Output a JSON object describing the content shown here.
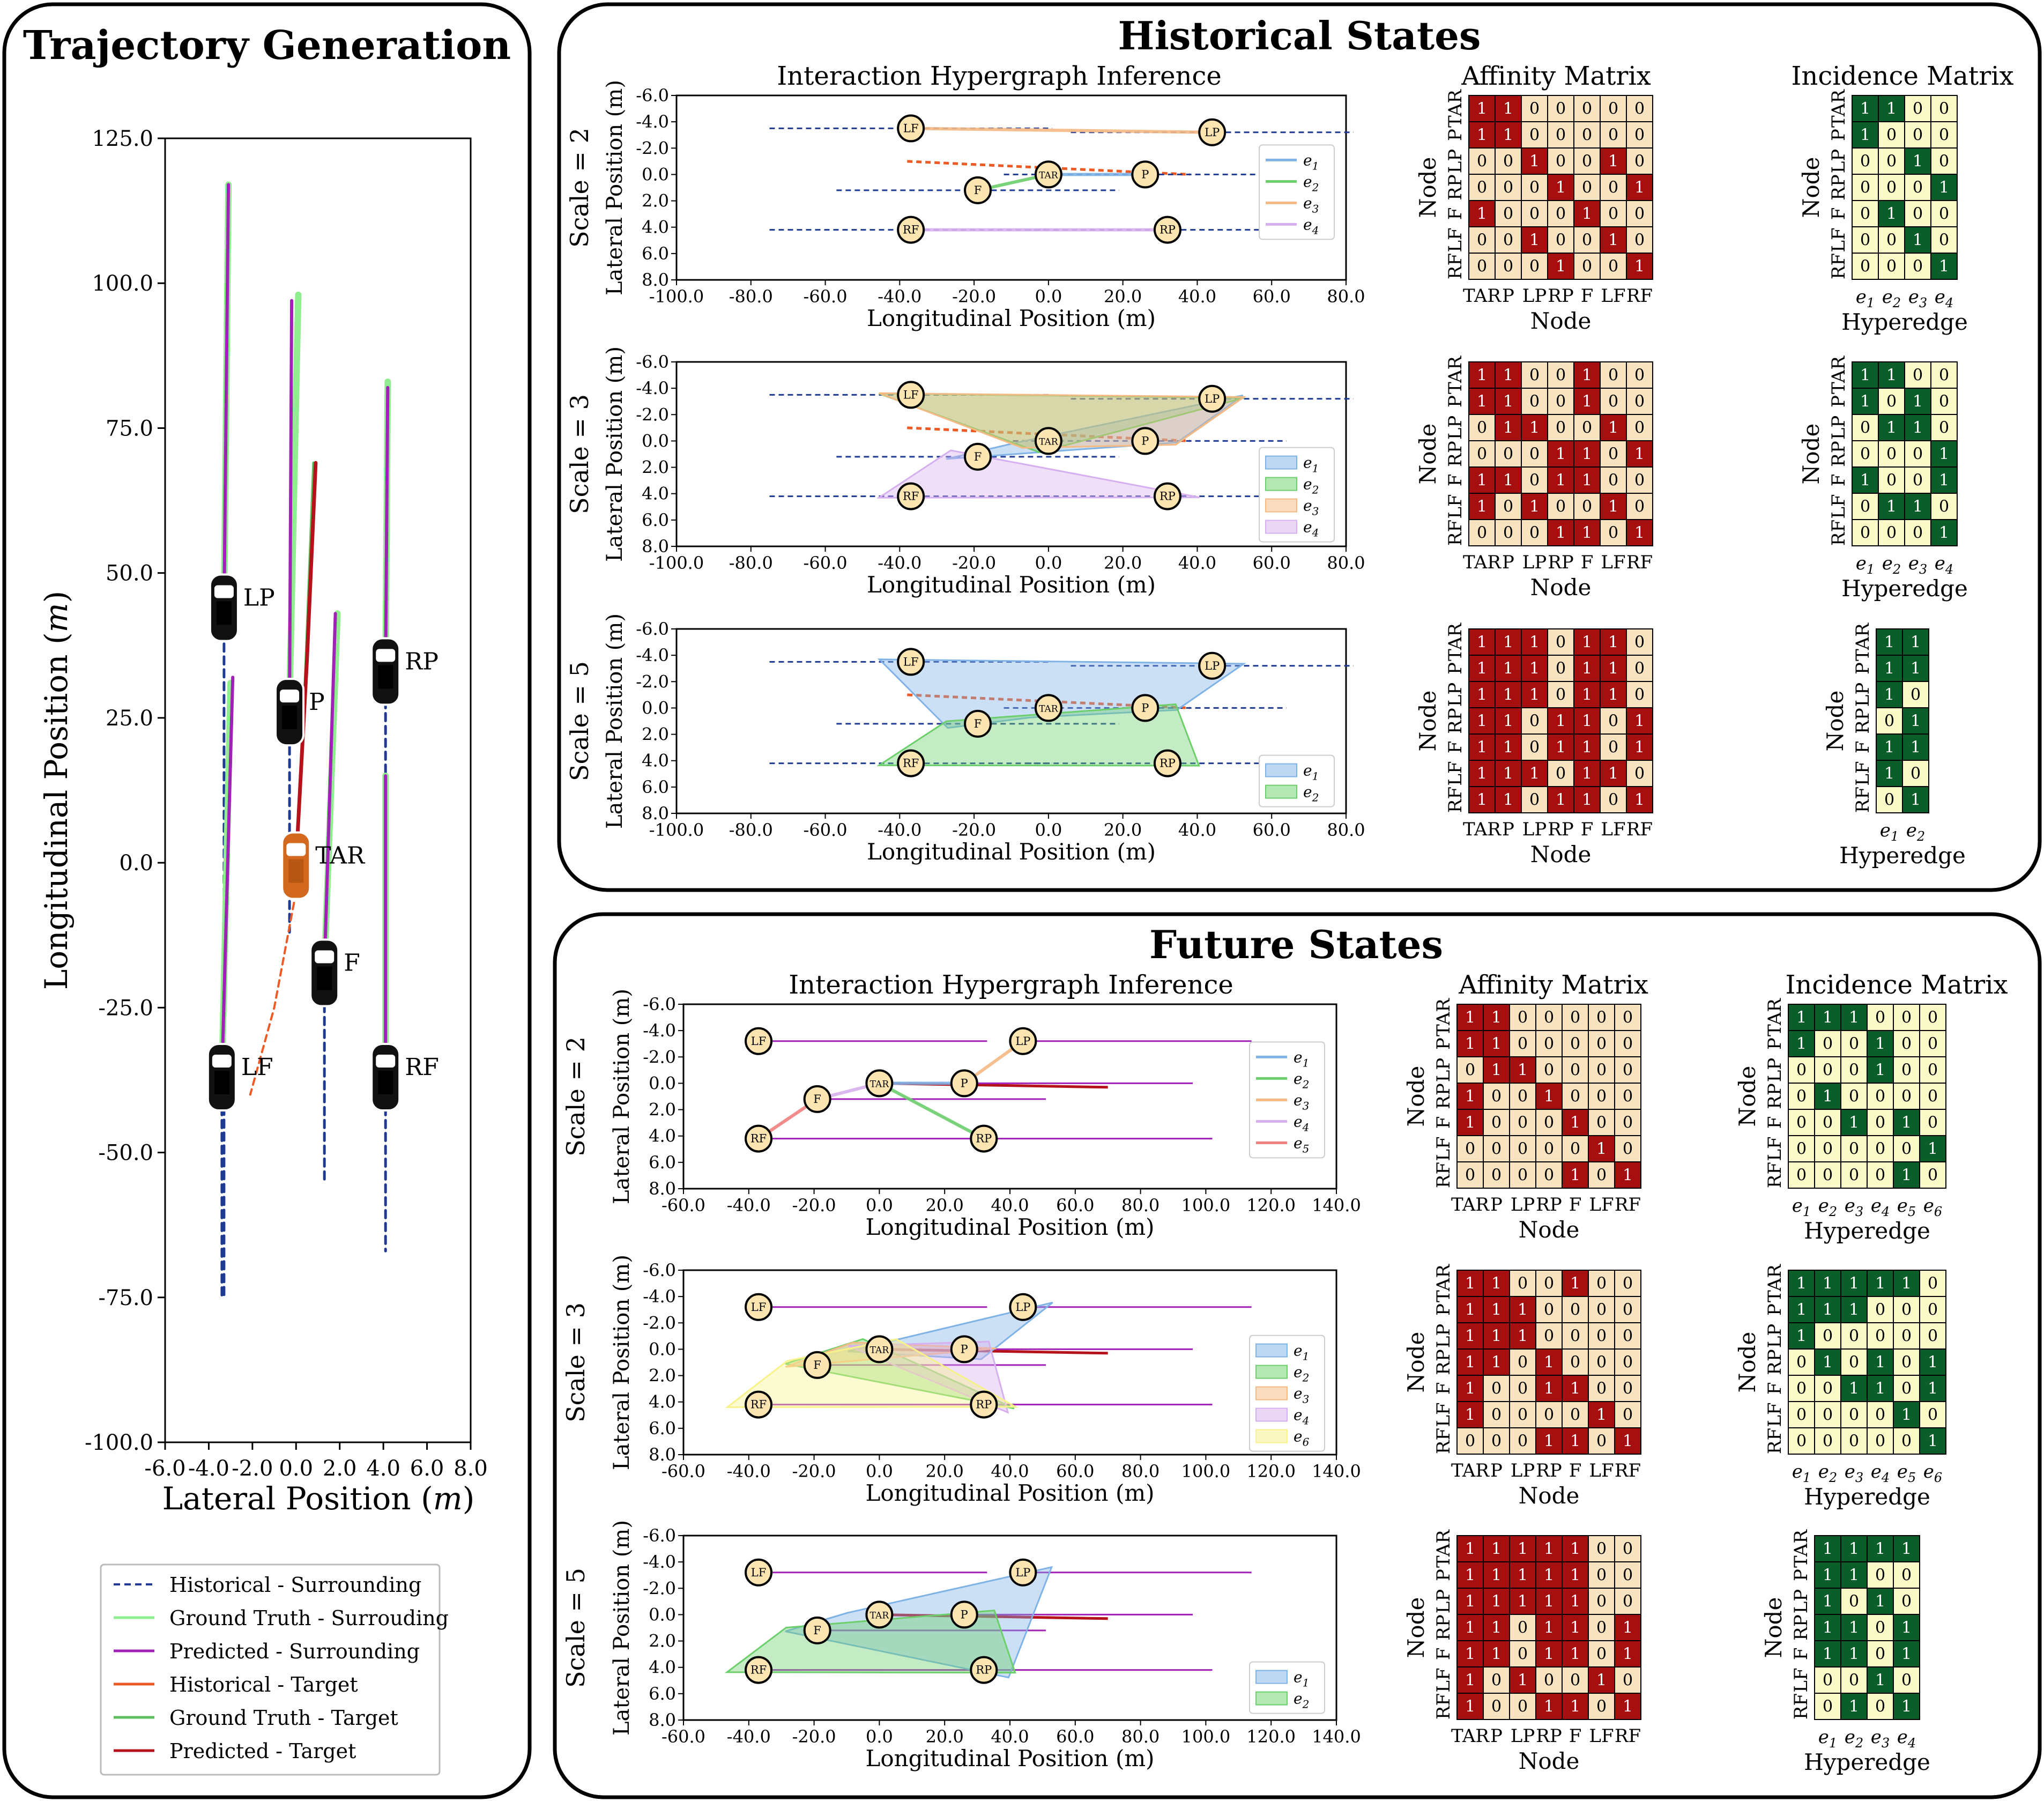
{
  "colors": {
    "hist_surr": "#1f3a93",
    "gt_surr": "#90ee90",
    "pred_surr": "#a020b8",
    "hist_tgt": "#ee5a24",
    "gt_tgt": "#5cbf5c",
    "pred_tgt": "#b5121b",
    "aff_one": "#a50f0f",
    "aff_zero": "#f7e3c0",
    "inc_one": "#0b5e2a",
    "inc_zero": "#fafac8",
    "node_fill": "#fce5b0",
    "e1": "#7fb2e5",
    "e2": "#6ccf6c",
    "e3": "#f5b984",
    "e4": "#d6b0ee",
    "e5": "#f08080",
    "e6": "#f7f28a"
  },
  "left": {
    "title": "Trajectory Generation",
    "xlabel": "Lateral Position",
    "ylabel": "Longitudinal Position",
    "unit": "m",
    "x_ticks": [
      "-6.0",
      "-4.0",
      "-2.0",
      "0.0",
      "2.0",
      "4.0",
      "6.0",
      "8.0"
    ],
    "y_ticks": [
      "125.0",
      "100.0",
      "75.0",
      "50.0",
      "25.0",
      "0.0",
      "-25.0",
      "-50.0",
      "-75.0",
      "-100.0"
    ],
    "legend": [
      "Historical - Surrounding",
      "Ground Truth - Surrouding",
      "Predicted - Surrounding",
      "Historical - Target",
      "Ground Truth - Target",
      "Predicted - Target"
    ],
    "vehicles": [
      "LP",
      "P",
      "RP",
      "TAR",
      "F",
      "LF",
      "RF"
    ]
  },
  "chart_data": {
    "type": "line",
    "title": "Trajectory Generation",
    "xlabel": "Lateral Position (m)",
    "ylabel": "Longitudinal Position (m)",
    "xlim": [
      -6,
      8
    ],
    "ylim": [
      -100,
      125
    ],
    "vehicles": [
      {
        "name": "LP",
        "x": -3.3,
        "y": 44
      },
      {
        "name": "P",
        "x": -0.3,
        "y": 26
      },
      {
        "name": "RP",
        "x": 4.1,
        "y": 33
      },
      {
        "name": "TAR",
        "x": 0.0,
        "y": -0.5
      },
      {
        "name": "F",
        "x": 1.3,
        "y": -19
      },
      {
        "name": "LF",
        "x": -3.4,
        "y": -37
      },
      {
        "name": "RF",
        "x": 4.1,
        "y": -37
      }
    ],
    "series": [
      {
        "name": "Historical - Surrounding",
        "lines": [
          [
            [
              -3.3,
              40
            ],
            [
              -3.3,
              -75
            ]
          ],
          [
            [
              -0.3,
              20
            ],
            [
              -0.3,
              -12
            ]
          ],
          [
            [
              4.1,
              28
            ],
            [
              4.1,
              -9
            ]
          ],
          [
            [
              1.3,
              -20
            ],
            [
              1.3,
              -55
            ]
          ],
          [
            [
              -3.4,
              -40
            ],
            [
              -3.4,
              -75
            ]
          ],
          [
            [
              4.1,
              -40
            ],
            [
              4.1,
              -67
            ]
          ]
        ]
      },
      {
        "name": "Ground Truth - Surrouding",
        "lines": [
          [
            [
              -3.3,
              44
            ],
            [
              -3.1,
              117
            ]
          ],
          [
            [
              -0.3,
              28
            ],
            [
              0.1,
              98
            ]
          ],
          [
            [
              4.1,
              33
            ],
            [
              4.2,
              83
            ]
          ],
          [
            [
              1.3,
              -18
            ],
            [
              1.9,
              43
            ]
          ],
          [
            [
              -3.4,
              -37
            ],
            [
              -3.0,
              31
            ]
          ],
          [
            [
              4.1,
              -37
            ],
            [
              4.1,
              15
            ]
          ]
        ]
      },
      {
        "name": "Predicted - Surrounding",
        "lines": [
          [
            [
              -3.3,
              44
            ],
            [
              -3.1,
              117
            ]
          ],
          [
            [
              -0.3,
              28
            ],
            [
              -0.2,
              97
            ]
          ],
          [
            [
              4.1,
              33
            ],
            [
              4.2,
              82
            ]
          ],
          [
            [
              1.3,
              -18
            ],
            [
              1.8,
              43
            ]
          ],
          [
            [
              -3.4,
              -37
            ],
            [
              -2.9,
              32
            ]
          ],
          [
            [
              4.1,
              -37
            ],
            [
              4.1,
              15
            ]
          ]
        ]
      },
      {
        "name": "Historical - Target",
        "lines": [
          [
            [
              0.0,
              -5
            ],
            [
              -1.0,
              -25
            ],
            [
              -2.1,
              -40
            ]
          ]
        ]
      },
      {
        "name": "Ground Truth - Target",
        "lines": [
          [
            [
              0.0,
              0
            ],
            [
              0.4,
              30
            ],
            [
              0.8,
              69
            ]
          ]
        ]
      },
      {
        "name": "Predicted - Target",
        "lines": [
          [
            [
              0.0,
              0
            ],
            [
              0.5,
              35
            ],
            [
              0.9,
              69
            ]
          ]
        ]
      }
    ],
    "hypergraphs": {
      "historical": {
        "xlim": [
          -100,
          80
        ],
        "ylim": [
          -6,
          8
        ],
        "nodes": [
          {
            "n": "LF",
            "x": -37,
            "y": -3.5
          },
          {
            "n": "LP",
            "x": 44,
            "y": -3.2
          },
          {
            "n": "TAR",
            "x": 0,
            "y": 0
          },
          {
            "n": "P",
            "x": 26,
            "y": 0
          },
          {
            "n": "F",
            "x": -19,
            "y": 1.2
          },
          {
            "n": "RF",
            "x": -37,
            "y": 4.2
          },
          {
            "n": "RP",
            "x": 32,
            "y": 4.2
          }
        ],
        "scale2_edges": [
          "e1",
          "e2",
          "e3",
          "e4"
        ],
        "scale3_edges": [
          "e1",
          "e2",
          "e3",
          "e4"
        ],
        "scale5_edges": [
          "e1",
          "e2"
        ]
      },
      "future": {
        "xlim": [
          -60,
          140
        ],
        "ylim": [
          -6,
          8
        ],
        "nodes": [
          {
            "n": "LF",
            "x": -37,
            "y": -3.2
          },
          {
            "n": "LP",
            "x": 44,
            "y": -3.2
          },
          {
            "n": "TAR",
            "x": 0,
            "y": 0
          },
          {
            "n": "P",
            "x": 26,
            "y": 0
          },
          {
            "n": "F",
            "x": -19,
            "y": 1.2
          },
          {
            "n": "RF",
            "x": -37,
            "y": 4.2
          },
          {
            "n": "RP",
            "x": 32,
            "y": 4.2
          }
        ],
        "scale2_edges": [
          "e1",
          "e2",
          "e3",
          "e4",
          "e5"
        ],
        "scale3_edges": [
          "e1",
          "e2",
          "e3",
          "e4",
          "e6"
        ],
        "scale5_edges": [
          "e1",
          "e2"
        ]
      }
    }
  },
  "hist": {
    "title": "Historical States",
    "col1": "Interaction Hypergraph Inference",
    "col2": "Affinity Matrix",
    "col3": "Incidence Matrix",
    "xlabel": "Longitudinal Position",
    "ylabel": "Lateral Position",
    "x_ticks": [
      "-100.0",
      "-80.0",
      "-60.0",
      "-40.0",
      "-20.0",
      "0.0",
      "20.0",
      "40.0",
      "60.0",
      "80.0"
    ],
    "y_ticks": [
      "-6.0",
      "-4.0",
      "-2.0",
      "0.0",
      "2.0",
      "4.0",
      "6.0",
      "8.0"
    ],
    "scales": [
      "Scale = 2",
      "Scale = 3",
      "Scale = 5"
    ],
    "node_axis": "Node",
    "hyper_axis": "Hyperedge",
    "node_labels": [
      "TAR",
      "P",
      "LP",
      "RP",
      "F",
      "LF",
      "RF"
    ],
    "aff": [
      [
        [
          1,
          1,
          0,
          0,
          0,
          0,
          0
        ],
        [
          1,
          1,
          0,
          0,
          0,
          0,
          0
        ],
        [
          0,
          0,
          1,
          0,
          0,
          1,
          0
        ],
        [
          0,
          0,
          0,
          1,
          0,
          0,
          1
        ],
        [
          1,
          0,
          0,
          0,
          1,
          0,
          0
        ],
        [
          0,
          0,
          1,
          0,
          0,
          1,
          0
        ],
        [
          0,
          0,
          0,
          1,
          0,
          0,
          1
        ]
      ],
      [
        [
          1,
          1,
          0,
          0,
          1,
          0,
          0
        ],
        [
          1,
          1,
          0,
          0,
          1,
          0,
          0
        ],
        [
          0,
          1,
          1,
          0,
          0,
          1,
          0
        ],
        [
          0,
          0,
          0,
          1,
          1,
          0,
          1
        ],
        [
          1,
          1,
          0,
          1,
          1,
          0,
          0
        ],
        [
          1,
          0,
          1,
          0,
          0,
          1,
          0
        ],
        [
          0,
          0,
          0,
          1,
          1,
          0,
          1
        ]
      ],
      [
        [
          1,
          1,
          1,
          0,
          1,
          1,
          0
        ],
        [
          1,
          1,
          1,
          0,
          1,
          1,
          0
        ],
        [
          1,
          1,
          1,
          0,
          1,
          1,
          0
        ],
        [
          1,
          1,
          0,
          1,
          1,
          0,
          1
        ],
        [
          1,
          1,
          0,
          1,
          1,
          0,
          1
        ],
        [
          1,
          1,
          1,
          0,
          1,
          1,
          0
        ],
        [
          1,
          1,
          0,
          1,
          1,
          0,
          1
        ]
      ]
    ],
    "inc": [
      [
        [
          1,
          1,
          0,
          0
        ],
        [
          1,
          0,
          0,
          0
        ],
        [
          0,
          0,
          1,
          0
        ],
        [
          0,
          0,
          0,
          1
        ],
        [
          0,
          1,
          0,
          0
        ],
        [
          0,
          0,
          1,
          0
        ],
        [
          0,
          0,
          0,
          1
        ]
      ],
      [
        [
          1,
          1,
          0,
          0
        ],
        [
          1,
          0,
          1,
          0
        ],
        [
          0,
          1,
          1,
          0
        ],
        [
          0,
          0,
          0,
          1
        ],
        [
          1,
          0,
          0,
          1
        ],
        [
          0,
          1,
          1,
          0
        ],
        [
          0,
          0,
          0,
          1
        ]
      ],
      [
        [
          1,
          1
        ],
        [
          1,
          1
        ],
        [
          1,
          0
        ],
        [
          0,
          1
        ],
        [
          1,
          1
        ],
        [
          1,
          0
        ],
        [
          0,
          1
        ]
      ]
    ]
  },
  "fut": {
    "title": "Future States",
    "col1": "Interaction Hypergraph Inference",
    "col2": "Affinity Matrix",
    "col3": "Incidence Matrix",
    "xlabel": "Longitudinal Position",
    "ylabel": "Lateral Position",
    "x_ticks": [
      "-60.0",
      "-40.0",
      "-20.0",
      "0.0",
      "20.0",
      "40.0",
      "60.0",
      "80.0",
      "100.0",
      "120.0",
      "140.0"
    ],
    "y_ticks": [
      "-6.0",
      "-4.0",
      "-2.0",
      "0.0",
      "2.0",
      "4.0",
      "6.0",
      "8.0"
    ],
    "scales": [
      "Scale = 2",
      "Scale = 3",
      "Scale = 5"
    ],
    "node_axis": "Node",
    "hyper_axis": "Hyperedge",
    "node_labels": [
      "TAR",
      "P",
      "LP",
      "RP",
      "F",
      "LF",
      "RF"
    ],
    "aff": [
      [
        [
          1,
          1,
          0,
          0,
          0,
          0,
          0
        ],
        [
          1,
          1,
          0,
          0,
          0,
          0,
          0
        ],
        [
          0,
          1,
          1,
          0,
          0,
          0,
          0
        ],
        [
          1,
          0,
          0,
          1,
          0,
          0,
          0
        ],
        [
          1,
          0,
          0,
          0,
          1,
          0,
          0
        ],
        [
          0,
          0,
          0,
          0,
          0,
          1,
          0
        ],
        [
          0,
          0,
          0,
          0,
          1,
          0,
          1
        ]
      ],
      [
        [
          1,
          1,
          0,
          0,
          1,
          0,
          0
        ],
        [
          1,
          1,
          1,
          0,
          0,
          0,
          0
        ],
        [
          1,
          1,
          1,
          0,
          0,
          0,
          0
        ],
        [
          1,
          1,
          0,
          1,
          0,
          0,
          0
        ],
        [
          1,
          0,
          0,
          1,
          1,
          0,
          0
        ],
        [
          1,
          0,
          0,
          0,
          0,
          1,
          0
        ],
        [
          0,
          0,
          0,
          1,
          1,
          0,
          1
        ]
      ],
      [
        [
          1,
          1,
          1,
          1,
          1,
          0,
          0
        ],
        [
          1,
          1,
          1,
          1,
          1,
          0,
          0
        ],
        [
          1,
          1,
          1,
          1,
          1,
          0,
          0
        ],
        [
          1,
          1,
          0,
          1,
          1,
          0,
          1
        ],
        [
          1,
          1,
          0,
          1,
          1,
          0,
          1
        ],
        [
          1,
          0,
          1,
          0,
          0,
          1,
          0
        ],
        [
          1,
          0,
          0,
          1,
          1,
          0,
          1
        ]
      ]
    ],
    "inc": [
      [
        [
          1,
          1,
          1,
          0,
          0,
          0
        ],
        [
          1,
          0,
          0,
          1,
          0,
          0
        ],
        [
          0,
          0,
          0,
          1,
          0,
          0
        ],
        [
          0,
          1,
          0,
          0,
          0,
          0
        ],
        [
          0,
          0,
          1,
          0,
          1,
          0
        ],
        [
          0,
          0,
          0,
          0,
          0,
          1
        ],
        [
          0,
          0,
          0,
          0,
          1,
          0
        ]
      ],
      [
        [
          1,
          1,
          1,
          1,
          1,
          0
        ],
        [
          1,
          1,
          1,
          0,
          0,
          0
        ],
        [
          1,
          0,
          0,
          0,
          0,
          0
        ],
        [
          0,
          1,
          0,
          1,
          0,
          1
        ],
        [
          0,
          0,
          1,
          1,
          0,
          1
        ],
        [
          0,
          0,
          0,
          0,
          1,
          0
        ],
        [
          0,
          0,
          0,
          0,
          0,
          1
        ]
      ],
      [
        [
          1,
          1,
          1,
          1
        ],
        [
          1,
          1,
          0,
          0
        ],
        [
          1,
          0,
          1,
          0
        ],
        [
          1,
          1,
          0,
          1
        ],
        [
          1,
          1,
          0,
          1
        ],
        [
          0,
          0,
          1,
          0
        ],
        [
          0,
          1,
          0,
          1
        ]
      ]
    ]
  }
}
